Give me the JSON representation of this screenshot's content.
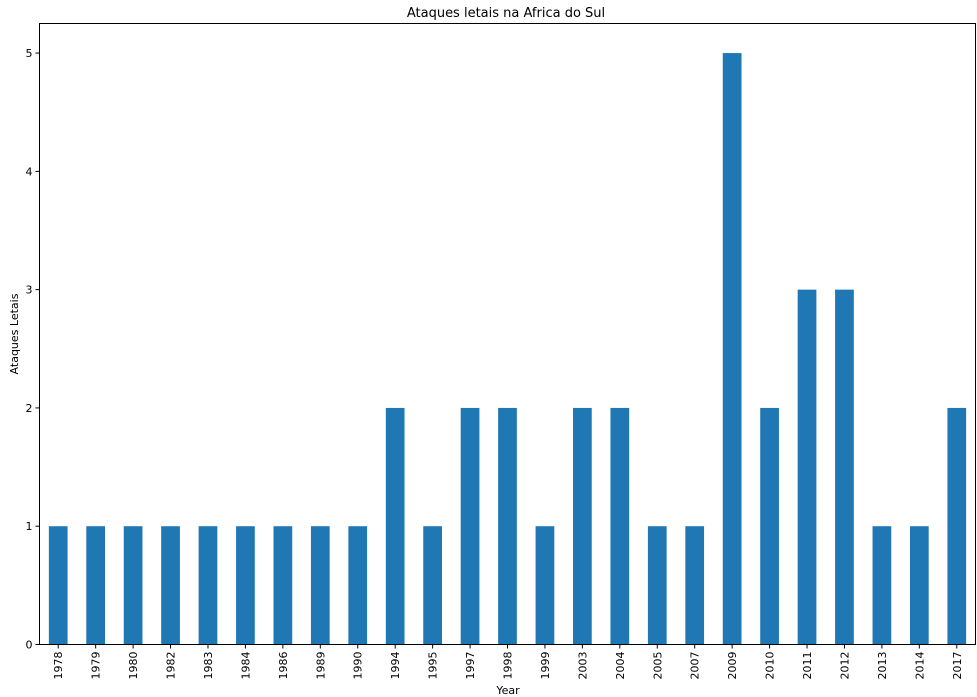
{
  "chart_data": {
    "type": "bar",
    "title": "Ataques letais na Africa do Sul",
    "xlabel": "Year",
    "ylabel": "Ataques Letais",
    "categories": [
      "1978",
      "1979",
      "1980",
      "1982",
      "1983",
      "1984",
      "1986",
      "1989",
      "1990",
      "1994",
      "1995",
      "1997",
      "1998",
      "1999",
      "2003",
      "2004",
      "2005",
      "2007",
      "2009",
      "2010",
      "2011",
      "2012",
      "2013",
      "2014",
      "2017"
    ],
    "values": [
      1,
      1,
      1,
      1,
      1,
      1,
      1,
      1,
      1,
      2,
      1,
      2,
      2,
      1,
      2,
      2,
      1,
      1,
      5,
      2,
      3,
      3,
      1,
      1,
      2
    ],
    "ylim": [
      0,
      5.25
    ],
    "yticks": [
      0,
      1,
      2,
      3,
      4,
      5
    ],
    "bar_color": "#1f77b4",
    "grid": false,
    "legend": "none"
  }
}
